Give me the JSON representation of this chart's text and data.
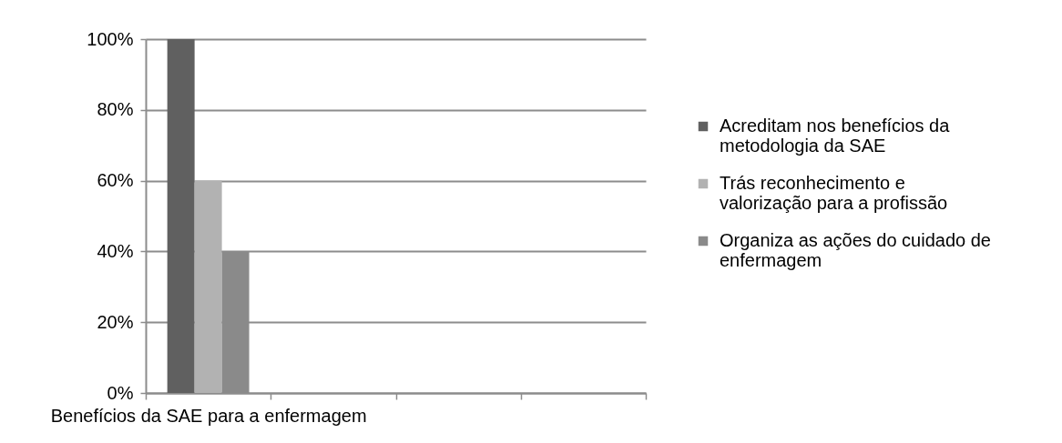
{
  "chart_data": {
    "type": "bar",
    "categories": [
      "Benefícios da SAE para a enfermagem",
      null,
      null,
      null
    ],
    "series": [
      {
        "name": "Acreditam nos benefícios da metodologia da SAE",
        "color": "#606060",
        "values": [
          100,
          null,
          null,
          null
        ]
      },
      {
        "name": "Trás reconhecimento e valorização para a profissão",
        "color": "#b2b2b2",
        "values": [
          60,
          null,
          null,
          null
        ]
      },
      {
        "name": "Organiza as ações do cuidado de enfermagem",
        "color": "#8a8a8a",
        "values": [
          40,
          null,
          null,
          null
        ]
      }
    ],
    "ylim": [
      0,
      100
    ],
    "yticks": [
      {
        "value": 0,
        "label": "0%"
      },
      {
        "value": 20,
        "label": "20%"
      },
      {
        "value": 40,
        "label": "40%"
      },
      {
        "value": 60,
        "label": "60%"
      },
      {
        "value": 80,
        "label": "80%"
      },
      {
        "value": 100,
        "label": "100%"
      }
    ],
    "grid": "y",
    "legend": "right"
  }
}
